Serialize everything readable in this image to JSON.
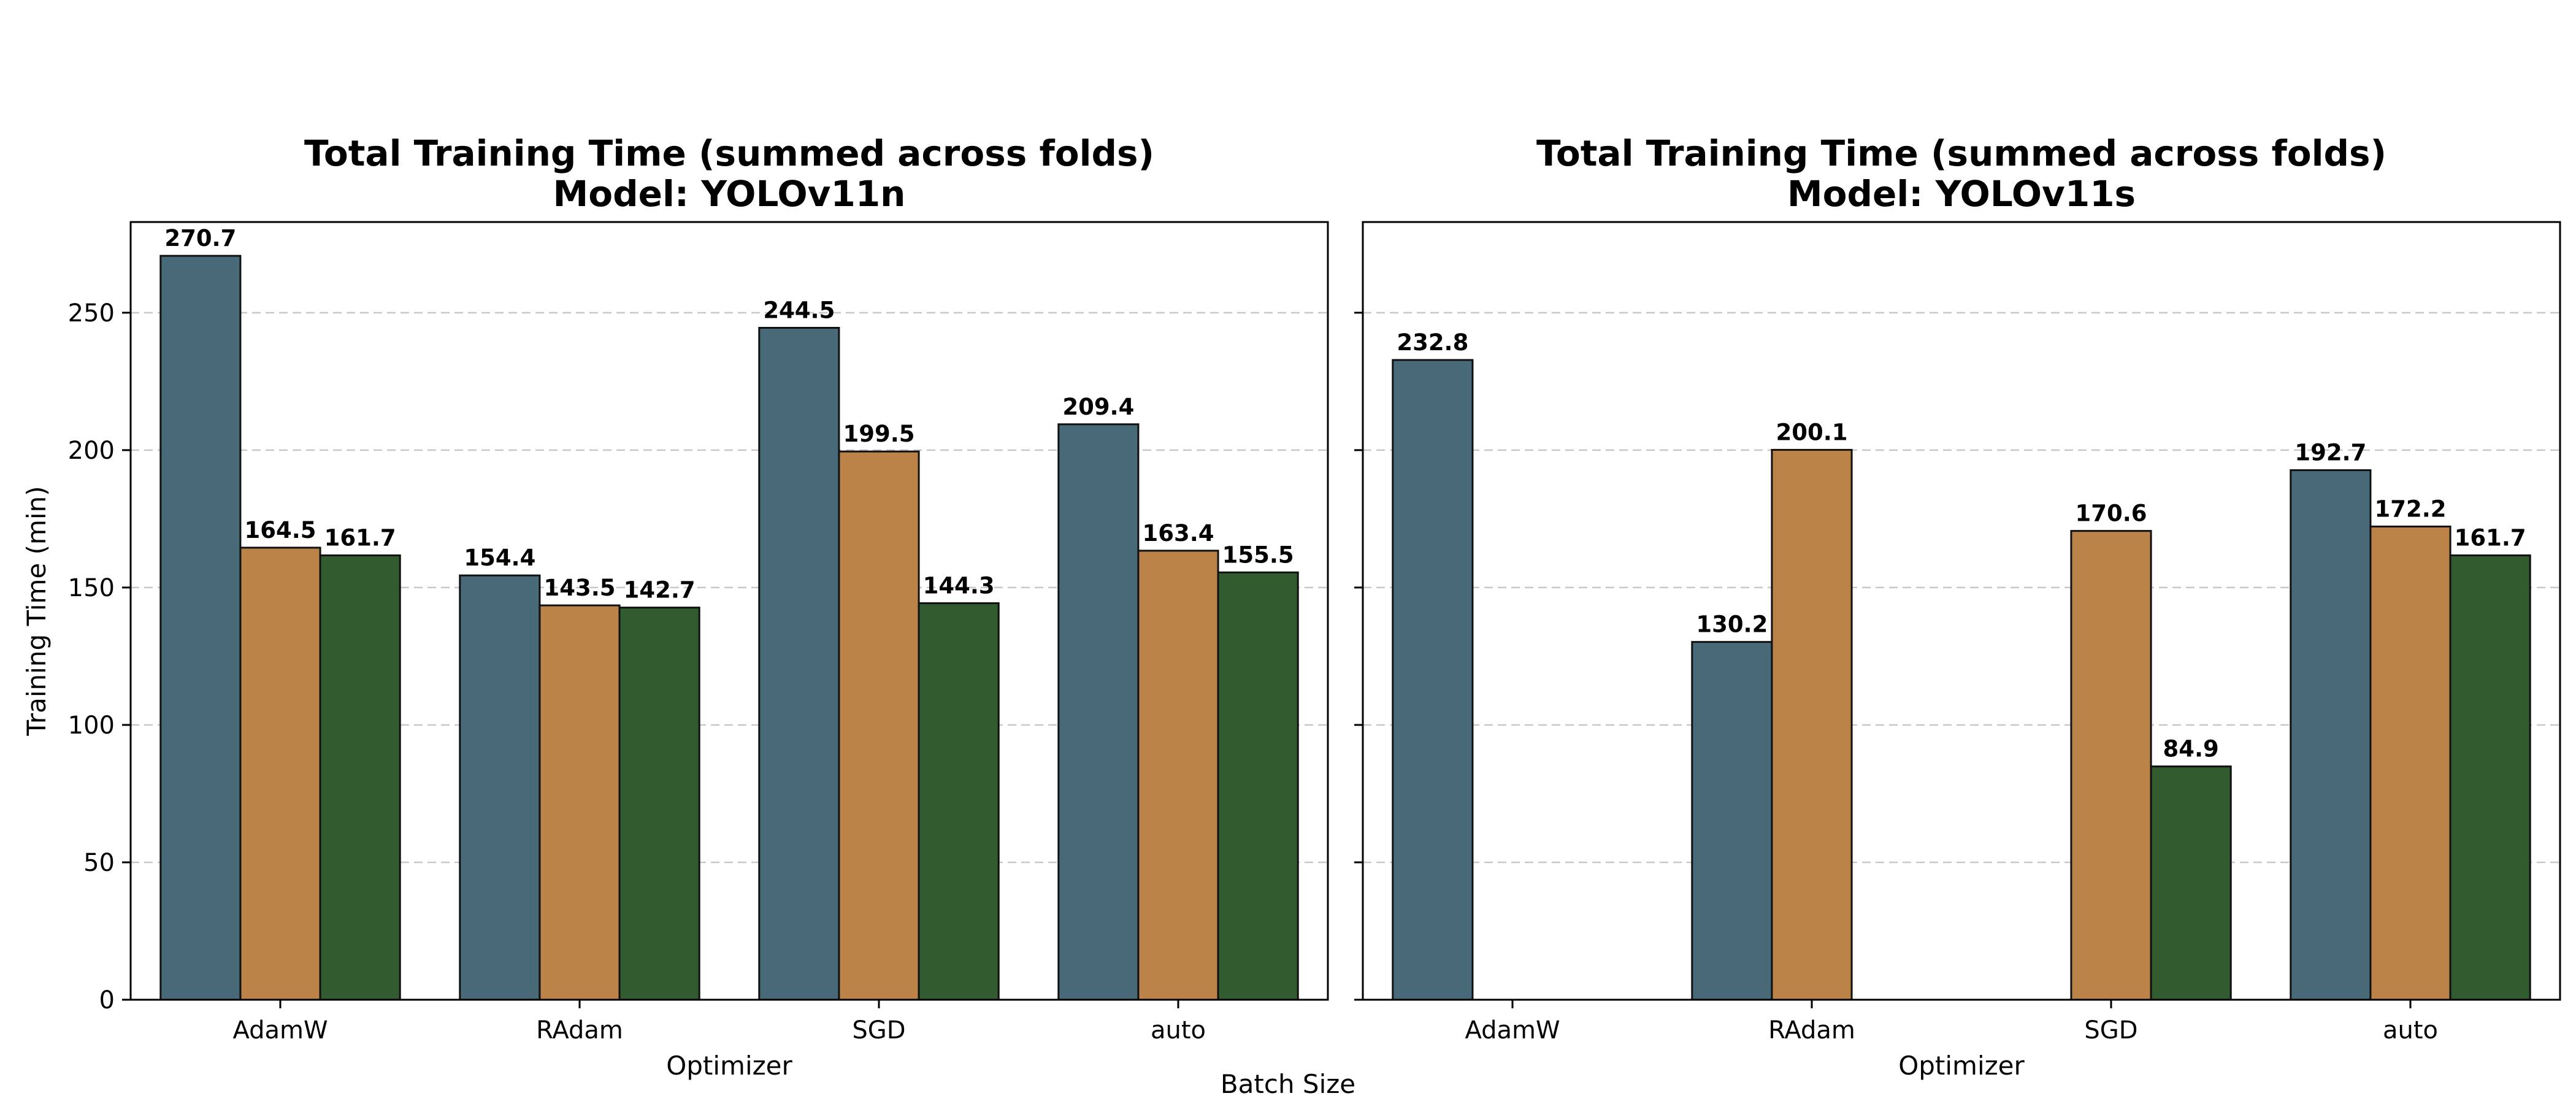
{
  "figure_label": "Batch Size",
  "chart_data": [
    {
      "type": "bar",
      "title": "Total Training Time (summed across folds)",
      "subtitle": "Model: YOLOv11n",
      "xlabel": "Optimizer",
      "ylabel": "Training Time (min)",
      "categories": [
        "AdamW",
        "RAdam",
        "SGD",
        "auto"
      ],
      "ylim": [
        0,
        283
      ],
      "yticks": [
        0,
        50,
        100,
        150,
        200,
        250
      ],
      "grid": "y-dashed",
      "series": [
        {
          "color": "#476978",
          "values": [
            270.7,
            154.4,
            244.5,
            209.4
          ]
        },
        {
          "color": "#bb8347",
          "values": [
            164.5,
            143.5,
            199.5,
            163.4
          ]
        },
        {
          "color": "#325b2f",
          "values": [
            161.7,
            142.7,
            144.3,
            155.5
          ]
        }
      ]
    },
    {
      "type": "bar",
      "title": "Total Training Time (summed across folds)",
      "subtitle": "Model: YOLOv11s",
      "xlabel": "Optimizer",
      "ylabel": "",
      "categories": [
        "AdamW",
        "RAdam",
        "SGD",
        "auto"
      ],
      "ylim": [
        0,
        283
      ],
      "yticks": [
        0,
        50,
        100,
        150,
        200,
        250
      ],
      "grid": "y-dashed",
      "series": [
        {
          "color": "#476978",
          "values": [
            232.8,
            130.2,
            null,
            192.7
          ]
        },
        {
          "color": "#bb8347",
          "values": [
            null,
            200.1,
            170.6,
            172.2
          ]
        },
        {
          "color": "#325b2f",
          "values": [
            null,
            null,
            84.9,
            161.7
          ]
        }
      ]
    }
  ]
}
